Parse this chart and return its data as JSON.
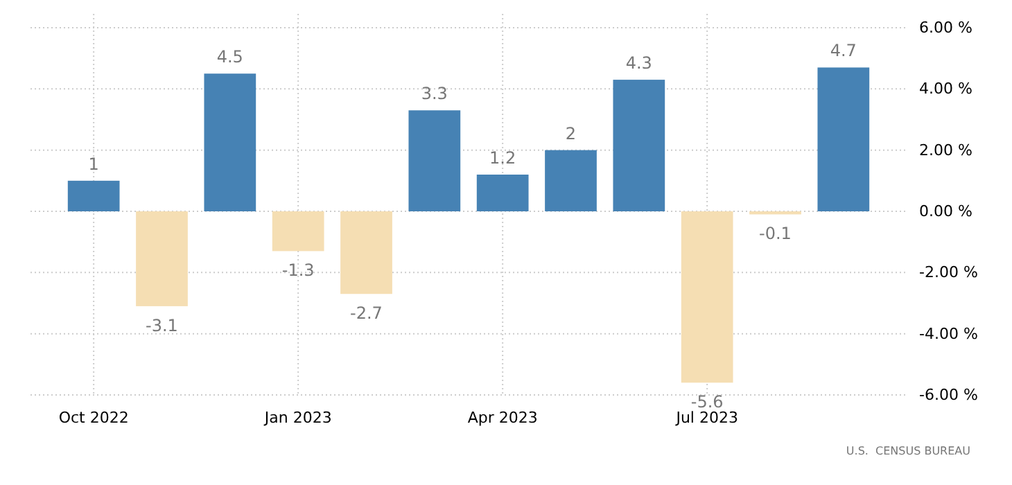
{
  "chart_data": {
    "type": "bar",
    "categories": [
      "Oct 2022",
      null,
      null,
      "Jan 2023",
      null,
      null,
      "Apr 2023",
      null,
      null,
      "Jul 2023",
      null,
      null
    ],
    "values": [
      1,
      -3.1,
      4.5,
      -1.3,
      -2.7,
      3.3,
      1.2,
      2,
      4.3,
      -5.6,
      -0.1,
      4.7
    ],
    "colors": [
      "#4682b4",
      "#f5deb3",
      "#4682b4",
      "#f5deb3",
      "#f5deb3",
      "#4682b4",
      "#4682b4",
      "#4682b4",
      "#4682b4",
      "#f5deb3",
      "#f5deb3",
      "#4682b4"
    ],
    "data_labels": true,
    "ylim": [
      -6,
      6
    ],
    "yticks": [
      {
        "value": -6,
        "label": "-6.00 %"
      },
      {
        "value": -4,
        "label": "-4.00 %"
      },
      {
        "value": -2,
        "label": "-2.00 %"
      },
      {
        "value": 0,
        "label": "0.00 %"
      },
      {
        "value": 2,
        "label": "2.00 %"
      },
      {
        "value": 4,
        "label": "4.00 %"
      },
      {
        "value": 6,
        "label": "6.00 %"
      }
    ],
    "grid": true,
    "annotations": [
      "U.S.  CENSUS BUREAU"
    ]
  }
}
